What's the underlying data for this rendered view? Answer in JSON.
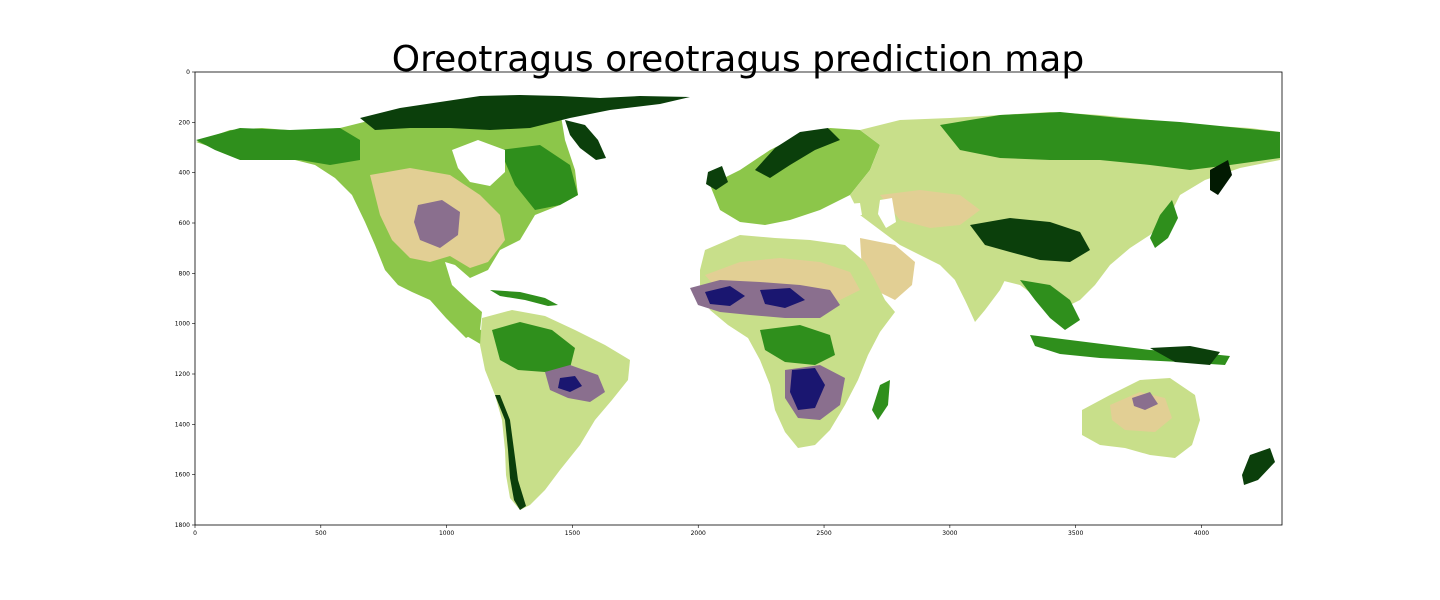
{
  "figure": {
    "title": "Oreotragus oreotragus prediction map"
  },
  "axes": {
    "x_ticks": [
      0,
      500,
      1000,
      1500,
      2000,
      2500,
      3000,
      3500,
      4000
    ],
    "y_ticks": [
      0,
      200,
      400,
      600,
      800,
      1000,
      1200,
      1400,
      1600,
      1800
    ],
    "xlim": [
      0,
      4320
    ],
    "ylim": [
      1800,
      0
    ]
  },
  "map": {
    "type": "raster prediction map (equirectangular world)",
    "colors": {
      "very_low": "#1a1670",
      "low": "#8a6f8e",
      "mid_low": "#e2cf94",
      "mid": "#c8df8a",
      "mid_high": "#8cc64a",
      "high": "#2f8f1c",
      "very_high": "#0b3f0b",
      "max": "#021a02"
    }
  }
}
